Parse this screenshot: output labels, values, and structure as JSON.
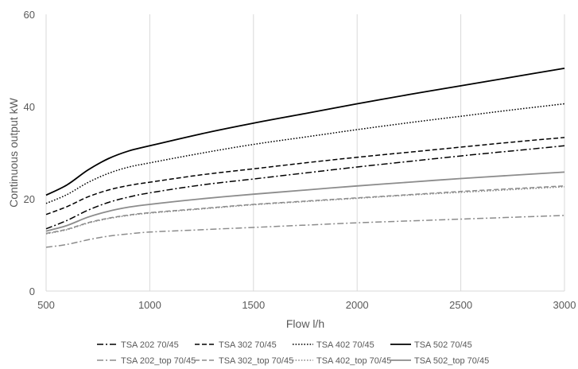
{
  "chart_data": {
    "type": "line",
    "title": "",
    "xlabel": "Flow l/h",
    "ylabel": "Continuous output kW",
    "xlim": [
      500,
      3000
    ],
    "ylim": [
      0,
      60
    ],
    "x_ticks": [
      500,
      1000,
      1500,
      2000,
      2500,
      3000
    ],
    "y_ticks": [
      0,
      20,
      40,
      60
    ],
    "grid": "vertical",
    "legend_position": "bottom",
    "x": [
      500,
      600,
      700,
      800,
      900,
      1000,
      1250,
      1500,
      1750,
      2000,
      2250,
      2500,
      2750,
      3000
    ],
    "series": [
      {
        "name": "TSA 202 70/45",
        "color": "#000000",
        "dash": "dashdot",
        "values": [
          13.5,
          15.3,
          17.5,
          19.2,
          20.4,
          21.3,
          23.0,
          24.3,
          25.6,
          26.9,
          28.1,
          29.3,
          30.4,
          31.5
        ]
      },
      {
        "name": "TSA 302 70/45",
        "color": "#000000",
        "dash": "dash",
        "values": [
          16.6,
          18.3,
          20.4,
          21.9,
          22.9,
          23.6,
          25.2,
          26.5,
          27.8,
          29.0,
          30.1,
          31.2,
          32.3,
          33.3
        ]
      },
      {
        "name": "TSA 402 70/45",
        "color": "#000000",
        "dash": "dot",
        "values": [
          19.0,
          20.9,
          23.5,
          25.5,
          26.9,
          27.8,
          29.9,
          31.8,
          33.4,
          35.0,
          36.5,
          37.9,
          39.3,
          40.6
        ]
      },
      {
        "name": "TSA 502 70/45",
        "color": "#000000",
        "dash": "solid",
        "values": [
          20.8,
          23.0,
          26.2,
          28.7,
          30.4,
          31.5,
          34.1,
          36.4,
          38.5,
          40.6,
          42.6,
          44.5,
          46.4,
          48.3
        ]
      },
      {
        "name": "TSA 202_top 70/45",
        "color": "#8c8c8c",
        "dash": "dashdot",
        "values": [
          9.5,
          10.1,
          11.1,
          11.9,
          12.4,
          12.8,
          13.3,
          13.8,
          14.3,
          14.8,
          15.2,
          15.6,
          16.0,
          16.4
        ]
      },
      {
        "name": "TSA 302_top 70/45",
        "color": "#8c8c8c",
        "dash": "dash",
        "values": [
          12.5,
          13.4,
          14.8,
          15.8,
          16.5,
          17.0,
          17.9,
          18.8,
          19.5,
          20.2,
          20.9,
          21.6,
          22.2,
          22.8
        ]
      },
      {
        "name": "TSA 402_top 70/45",
        "color": "#8c8c8c",
        "dash": "dot",
        "values": [
          12.4,
          13.3,
          14.7,
          15.7,
          16.4,
          16.9,
          17.8,
          18.7,
          19.4,
          20.1,
          20.8,
          21.4,
          22.0,
          22.6
        ]
      },
      {
        "name": "TSA 502_top 70/45",
        "color": "#8c8c8c",
        "dash": "solid",
        "values": [
          13.0,
          14.2,
          16.0,
          17.3,
          18.2,
          18.8,
          20.0,
          21.0,
          21.9,
          22.8,
          23.6,
          24.4,
          25.1,
          25.8
        ]
      }
    ]
  }
}
